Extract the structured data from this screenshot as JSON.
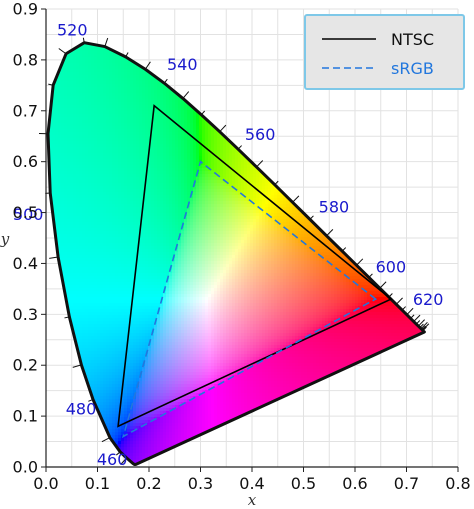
{
  "chart_data": {
    "type": "chromaticity-diagram",
    "xlabel": "x",
    "ylabel": "y",
    "xlim": [
      0.0,
      0.8
    ],
    "ylim": [
      0.0,
      0.9
    ],
    "x_ticks": [
      "0.0",
      "0.1",
      "0.2",
      "0.3",
      "0.4",
      "0.5",
      "0.6",
      "0.7",
      "0.8"
    ],
    "y_ticks": [
      "0.0",
      "0.1",
      "0.2",
      "0.3",
      "0.4",
      "0.5",
      "0.6",
      "0.7",
      "0.8",
      "0.9"
    ],
    "grid": true,
    "legend_position": "top-right",
    "colors": {
      "wavelength_labels": "#1a1acc",
      "ntsc": "#000000",
      "srgb": "#2277dd",
      "legend_border": "#7ec8e8",
      "legend_bg": "#e6e6e6"
    },
    "spectral_locus": [
      [
        0.1741,
        0.005
      ],
      [
        0.1738,
        0.0049
      ],
      [
        0.1736,
        0.0049
      ],
      [
        0.1733,
        0.0048
      ],
      [
        0.1726,
        0.0048
      ],
      [
        0.1714,
        0.0051
      ],
      [
        0.1689,
        0.0069
      ],
      [
        0.1644,
        0.0109
      ],
      [
        0.1566,
        0.0177
      ],
      [
        0.144,
        0.0297
      ],
      [
        0.1241,
        0.0578
      ],
      [
        0.0913,
        0.1327
      ],
      [
        0.0687,
        0.2007
      ],
      [
        0.0454,
        0.295
      ],
      [
        0.0235,
        0.4127
      ],
      [
        0.0082,
        0.5384
      ],
      [
        0.0039,
        0.6548
      ],
      [
        0.0139,
        0.7502
      ],
      [
        0.0389,
        0.812
      ],
      [
        0.0743,
        0.8338
      ],
      [
        0.1142,
        0.8262
      ],
      [
        0.1547,
        0.8059
      ],
      [
        0.1929,
        0.7816
      ],
      [
        0.2296,
        0.7543
      ],
      [
        0.2658,
        0.7243
      ],
      [
        0.3016,
        0.6923
      ],
      [
        0.3373,
        0.6589
      ],
      [
        0.3731,
        0.6245
      ],
      [
        0.4087,
        0.5896
      ],
      [
        0.4441,
        0.5547
      ],
      [
        0.4788,
        0.5202
      ],
      [
        0.5125,
        0.4866
      ],
      [
        0.5448,
        0.4544
      ],
      [
        0.5752,
        0.4242
      ],
      [
        0.6029,
        0.3965
      ],
      [
        0.627,
        0.3725
      ],
      [
        0.6482,
        0.3514
      ],
      [
        0.6658,
        0.334
      ],
      [
        0.6801,
        0.3197
      ],
      [
        0.6915,
        0.3083
      ],
      [
        0.7006,
        0.2993
      ],
      [
        0.7079,
        0.292
      ],
      [
        0.714,
        0.2859
      ],
      [
        0.719,
        0.2809
      ],
      [
        0.723,
        0.277
      ],
      [
        0.726,
        0.274
      ],
      [
        0.7283,
        0.2717
      ],
      [
        0.73,
        0.27
      ],
      [
        0.7311,
        0.2689
      ],
      [
        0.732,
        0.268
      ],
      [
        0.7327,
        0.2673
      ],
      [
        0.7334,
        0.2666
      ],
      [
        0.734,
        0.266
      ],
      [
        0.7344,
        0.2656
      ],
      [
        0.7346,
        0.2654
      ],
      [
        0.7347,
        0.2653
      ]
    ],
    "wavelength_labels": [
      {
        "label": "460",
        "x": 0.144,
        "y": 0.0297
      },
      {
        "label": "480",
        "x": 0.0913,
        "y": 0.1327
      },
      {
        "label": "500",
        "x": 0.0082,
        "y": 0.5384
      },
      {
        "label": "520",
        "x": 0.0743,
        "y": 0.8338
      },
      {
        "label": "540",
        "x": 0.2296,
        "y": 0.7543
      },
      {
        "label": "560",
        "x": 0.3731,
        "y": 0.6245
      },
      {
        "label": "580",
        "x": 0.5125,
        "y": 0.4866
      },
      {
        "label": "600",
        "x": 0.627,
        "y": 0.3725
      },
      {
        "label": "620",
        "x": 0.6915,
        "y": 0.3083
      }
    ],
    "series": [
      {
        "name": "NTSC",
        "style": "solid",
        "points": [
          [
            0.67,
            0.33
          ],
          [
            0.21,
            0.71
          ],
          [
            0.14,
            0.08
          ]
        ]
      },
      {
        "name": "sRGB",
        "style": "dashed",
        "points": [
          [
            0.64,
            0.33
          ],
          [
            0.3,
            0.6
          ],
          [
            0.15,
            0.06
          ]
        ]
      }
    ]
  }
}
